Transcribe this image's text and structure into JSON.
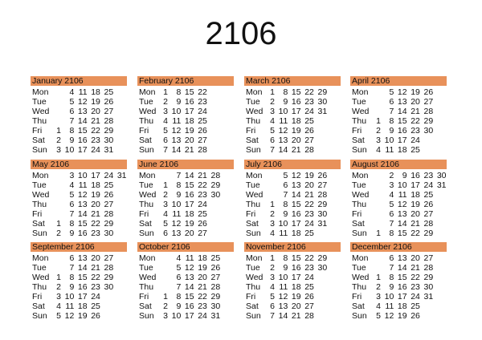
{
  "title": "2106",
  "weekdays": [
    "Mon",
    "Tue",
    "Wed",
    "Thu",
    "Fri",
    "Sat",
    "Sun"
  ],
  "header_color": "#E8915A",
  "months": [
    {
      "name": "January 2106",
      "rows": [
        [
          "",
          4,
          11,
          18,
          25
        ],
        [
          "",
          5,
          12,
          19,
          26
        ],
        [
          "",
          6,
          13,
          20,
          27
        ],
        [
          "",
          7,
          14,
          21,
          28
        ],
        [
          1,
          8,
          15,
          22,
          29
        ],
        [
          2,
          9,
          16,
          23,
          30
        ],
        [
          3,
          10,
          17,
          24,
          31
        ]
      ]
    },
    {
      "name": "February 2106",
      "rows": [
        [
          1,
          8,
          15,
          22
        ],
        [
          2,
          9,
          16,
          23
        ],
        [
          3,
          10,
          17,
          24
        ],
        [
          4,
          11,
          18,
          25
        ],
        [
          5,
          12,
          19,
          26
        ],
        [
          6,
          13,
          20,
          27
        ],
        [
          7,
          14,
          21,
          28
        ]
      ]
    },
    {
      "name": "March 2106",
      "rows": [
        [
          1,
          8,
          15,
          22,
          29
        ],
        [
          2,
          9,
          16,
          23,
          30
        ],
        [
          3,
          10,
          17,
          24,
          31
        ],
        [
          4,
          11,
          18,
          25
        ],
        [
          5,
          12,
          19,
          26
        ],
        [
          6,
          13,
          20,
          27
        ],
        [
          7,
          14,
          21,
          28
        ]
      ]
    },
    {
      "name": "April 2106",
      "rows": [
        [
          "",
          5,
          12,
          19,
          26
        ],
        [
          "",
          6,
          13,
          20,
          27
        ],
        [
          "",
          7,
          14,
          21,
          28
        ],
        [
          1,
          8,
          15,
          22,
          29
        ],
        [
          2,
          9,
          16,
          23,
          30
        ],
        [
          3,
          10,
          17,
          24
        ],
        [
          4,
          11,
          18,
          25
        ]
      ]
    },
    {
      "name": "May 2106",
      "rows": [
        [
          "",
          3,
          10,
          17,
          24,
          31
        ],
        [
          "",
          4,
          11,
          18,
          25
        ],
        [
          "",
          5,
          12,
          19,
          26
        ],
        [
          "",
          6,
          13,
          20,
          27
        ],
        [
          "",
          7,
          14,
          21,
          28
        ],
        [
          1,
          8,
          15,
          22,
          29
        ],
        [
          2,
          9,
          16,
          23,
          30
        ]
      ]
    },
    {
      "name": "June 2106",
      "rows": [
        [
          "",
          7,
          14,
          21,
          28
        ],
        [
          1,
          8,
          15,
          22,
          29
        ],
        [
          2,
          9,
          16,
          23,
          30
        ],
        [
          3,
          10,
          17,
          24
        ],
        [
          4,
          11,
          18,
          25
        ],
        [
          5,
          12,
          19,
          26
        ],
        [
          6,
          13,
          20,
          27
        ]
      ]
    },
    {
      "name": "July 2106",
      "rows": [
        [
          "",
          5,
          12,
          19,
          26
        ],
        [
          "",
          6,
          13,
          20,
          27
        ],
        [
          "",
          7,
          14,
          21,
          28
        ],
        [
          1,
          8,
          15,
          22,
          29
        ],
        [
          2,
          9,
          16,
          23,
          30
        ],
        [
          3,
          10,
          17,
          24,
          31
        ],
        [
          4,
          11,
          18,
          25
        ]
      ]
    },
    {
      "name": "August 2106",
      "rows": [
        [
          "",
          2,
          9,
          16,
          23,
          30
        ],
        [
          "",
          3,
          10,
          17,
          24,
          31
        ],
        [
          "",
          4,
          11,
          18,
          25
        ],
        [
          "",
          5,
          12,
          19,
          26
        ],
        [
          "",
          6,
          13,
          20,
          27
        ],
        [
          "",
          7,
          14,
          21,
          28
        ],
        [
          1,
          8,
          15,
          22,
          29
        ]
      ]
    },
    {
      "name": "September 2106",
      "rows": [
        [
          "",
          6,
          13,
          20,
          27
        ],
        [
          "",
          7,
          14,
          21,
          28
        ],
        [
          1,
          8,
          15,
          22,
          29
        ],
        [
          2,
          9,
          16,
          23,
          30
        ],
        [
          3,
          10,
          17,
          24
        ],
        [
          4,
          11,
          18,
          25
        ],
        [
          5,
          12,
          19,
          26
        ]
      ]
    },
    {
      "name": "October 2106",
      "rows": [
        [
          "",
          4,
          11,
          18,
          25
        ],
        [
          "",
          5,
          12,
          19,
          26
        ],
        [
          "",
          6,
          13,
          20,
          27
        ],
        [
          "",
          7,
          14,
          21,
          28
        ],
        [
          1,
          8,
          15,
          22,
          29
        ],
        [
          2,
          9,
          16,
          23,
          30
        ],
        [
          3,
          10,
          17,
          24,
          31
        ]
      ]
    },
    {
      "name": "November 2106",
      "rows": [
        [
          1,
          8,
          15,
          22,
          29
        ],
        [
          2,
          9,
          16,
          23,
          30
        ],
        [
          3,
          10,
          17,
          24
        ],
        [
          4,
          11,
          18,
          25
        ],
        [
          5,
          12,
          19,
          26
        ],
        [
          6,
          13,
          20,
          27
        ],
        [
          7,
          14,
          21,
          28
        ]
      ]
    },
    {
      "name": "December 2106",
      "rows": [
        [
          "",
          6,
          13,
          20,
          27
        ],
        [
          "",
          7,
          14,
          21,
          28
        ],
        [
          1,
          8,
          15,
          22,
          29
        ],
        [
          2,
          9,
          16,
          23,
          30
        ],
        [
          3,
          10,
          17,
          24,
          31
        ],
        [
          4,
          11,
          18,
          25
        ],
        [
          5,
          12,
          19,
          26
        ]
      ]
    }
  ]
}
